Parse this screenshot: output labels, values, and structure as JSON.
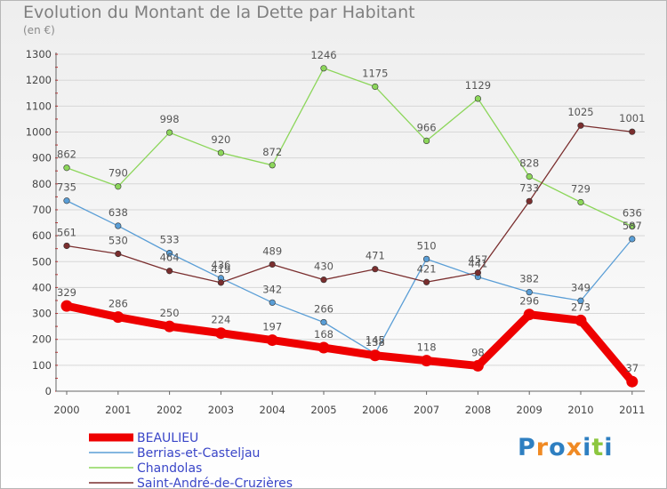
{
  "title": "Evolution du Montant de la Dette par Habitant",
  "unit": "(en €)",
  "brand": {
    "text": "Proxiti",
    "letter_colors": [
      "#2e7fc1",
      "#f08a24",
      "#2e7fc1",
      "#f08a24",
      "#2e7fc1",
      "#8cc63f",
      "#2e7fc1"
    ]
  },
  "chart_data": {
    "type": "line",
    "title": "Evolution du Montant de la Dette par Habitant",
    "ylabel": "(en €)",
    "xlabel": "",
    "ylim": [
      0,
      1300
    ],
    "y_ticks": [
      "0",
      "100",
      "200",
      "300",
      "400",
      "500",
      "600",
      "700",
      "800",
      "900",
      "1000",
      "1100",
      "1200",
      "1300"
    ],
    "categories": [
      "2000",
      "2001",
      "2002",
      "2003",
      "2004",
      "2005",
      "2006",
      "2007",
      "2008",
      "2009",
      "2010",
      "2011"
    ],
    "grid": "horizontal",
    "legend_position": "bottom-left",
    "series": [
      {
        "name": "BEAULIEU",
        "color": "#ee0000",
        "emphasis": true,
        "values": [
          329,
          286,
          250,
          224,
          197,
          168,
          138,
          118,
          98,
          296,
          273,
          37
        ]
      },
      {
        "name": "Berrias-et-Casteljau",
        "color": "#5a9ed6",
        "emphasis": false,
        "values": [
          735,
          638,
          533,
          436,
          342,
          266,
          145,
          510,
          441,
          382,
          349,
          587
        ]
      },
      {
        "name": "Chandolas",
        "color": "#8cd65a",
        "emphasis": false,
        "values": [
          862,
          790,
          998,
          920,
          872,
          1246,
          1175,
          966,
          1129,
          828,
          729,
          636
        ]
      },
      {
        "name": "Saint-André-de-Cruzières",
        "color": "#7a2e2e",
        "emphasis": false,
        "values": [
          561,
          530,
          464,
          419,
          489,
          430,
          471,
          421,
          457,
          733,
          1025,
          1001
        ]
      }
    ]
  }
}
